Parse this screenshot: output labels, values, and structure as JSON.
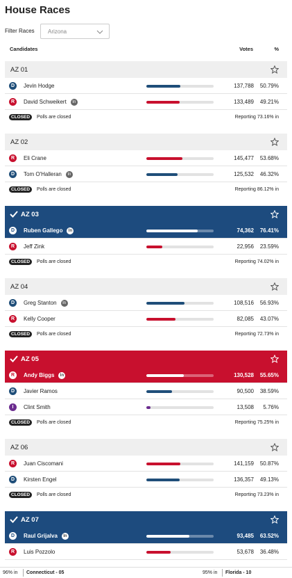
{
  "header": {
    "title": "House Races",
    "filter_label": "Filter Races",
    "filter_value": "Arizona"
  },
  "columns": {
    "candidates": "Candidates",
    "votes": "Votes",
    "pct": "%"
  },
  "races": [
    {
      "name": "AZ 01",
      "called": null,
      "candidates": [
        {
          "party": "D",
          "name": "Jevin Hodge",
          "votes": "137,788",
          "pct": {
            "value": 50.79,
            "label": "50.79%"
          }
        },
        {
          "party": "R",
          "name": "David Schweikert",
          "badge": "In",
          "votes": "133,489",
          "pct": {
            "value": 49.21,
            "label": "49.21%"
          }
        }
      ],
      "status": {
        "badge": "CLOSED",
        "text": "Polls are closed",
        "reporting": "Reporting 73.16% in"
      }
    },
    {
      "name": "AZ 02",
      "called": null,
      "candidates": [
        {
          "party": "R",
          "name": "Eli Crane",
          "votes": "145,477",
          "pct": {
            "value": 53.68,
            "label": "53.68%"
          }
        },
        {
          "party": "D",
          "name": "Tom O'Halleran",
          "badge": "In",
          "votes": "125,532",
          "pct": {
            "value": 46.32,
            "label": "46.32%"
          }
        }
      ],
      "status": {
        "badge": "CLOSED",
        "text": "Polls are closed",
        "reporting": "Reporting 86.12% in"
      }
    },
    {
      "name": "AZ 03",
      "called": "D",
      "candidates": [
        {
          "party": "D",
          "name": "Ruben Gallego",
          "badge": "In",
          "winner": true,
          "votes": "74,362",
          "pct": {
            "value": 76.41,
            "label": "76.41%"
          }
        },
        {
          "party": "R",
          "name": "Jeff Zink",
          "votes": "22,956",
          "pct": {
            "value": 23.59,
            "label": "23.59%"
          }
        }
      ],
      "status": {
        "badge": "CLOSED",
        "text": "Polls are closed",
        "reporting": "Reporting 74.02% in"
      }
    },
    {
      "name": "AZ 04",
      "called": null,
      "candidates": [
        {
          "party": "D",
          "name": "Greg Stanton",
          "badge": "In",
          "votes": "108,516",
          "pct": {
            "value": 56.93,
            "label": "56.93%"
          }
        },
        {
          "party": "R",
          "name": "Kelly Cooper",
          "votes": "82,085",
          "pct": {
            "value": 43.07,
            "label": "43.07%"
          }
        }
      ],
      "status": {
        "badge": "CLOSED",
        "text": "Polls are closed",
        "reporting": "Reporting 72.73% in"
      }
    },
    {
      "name": "AZ 05",
      "called": "R",
      "candidates": [
        {
          "party": "R",
          "name": "Andy Biggs",
          "badge": "In",
          "winner": true,
          "votes": "130,528",
          "pct": {
            "value": 55.65,
            "label": "55.65%"
          }
        },
        {
          "party": "D",
          "name": "Javier Ramos",
          "votes": "90,500",
          "pct": {
            "value": 38.59,
            "label": "38.59%"
          }
        },
        {
          "party": "I",
          "name": "Clint Smith",
          "votes": "13,508",
          "pct": {
            "value": 5.76,
            "label": "5.76%"
          }
        }
      ],
      "status": {
        "badge": "CLOSED",
        "text": "Polls are closed",
        "reporting": "Reporting 75.25% in"
      }
    },
    {
      "name": "AZ 06",
      "called": null,
      "candidates": [
        {
          "party": "R",
          "name": "Juan Ciscomani",
          "votes": "141,159",
          "pct": {
            "value": 50.87,
            "label": "50.87%"
          }
        },
        {
          "party": "D",
          "name": "Kirsten Engel",
          "votes": "136,357",
          "pct": {
            "value": 49.13,
            "label": "49.13%"
          }
        }
      ],
      "status": {
        "badge": "CLOSED",
        "text": "Polls are closed",
        "reporting": "Reporting 73.23% in"
      }
    },
    {
      "name": "AZ 07",
      "called": "D",
      "candidates": [
        {
          "party": "D",
          "name": "Raul Grijalva",
          "badge": "In",
          "winner": true,
          "votes": "93,485",
          "pct": {
            "value": 63.52,
            "label": "63.52%"
          }
        },
        {
          "party": "R",
          "name": "Luis Pozzolo",
          "votes": "53,678",
          "pct": {
            "value": 36.48,
            "label": "36.48%"
          }
        }
      ]
    }
  ],
  "ticker": [
    {
      "pct": "96% in",
      "race": "Connecticut - 05"
    },
    {
      "pct": "95% in",
      "race": "Florida - 10"
    }
  ]
}
